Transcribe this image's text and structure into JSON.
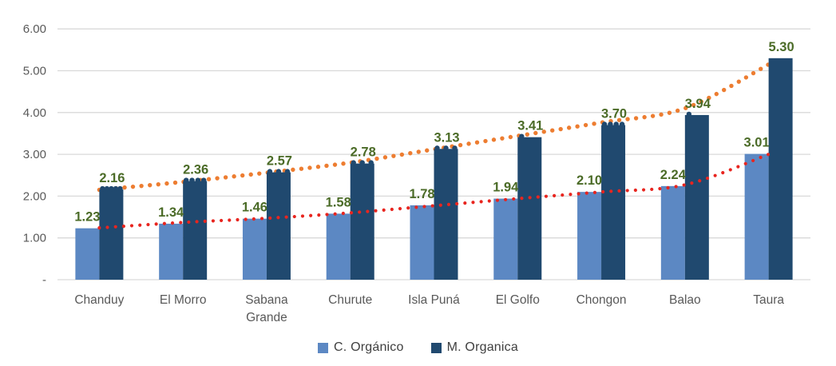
{
  "chart_data": {
    "type": "bar",
    "title": "",
    "xlabel": "",
    "ylabel": "",
    "categories": [
      "Chanduy",
      "El Morro",
      "Sabana Grande",
      "Churute",
      "Isla Puná",
      "El Golfo",
      "Chongon",
      "Balao",
      "Taura"
    ],
    "series": [
      {
        "name": "C. Orgánico",
        "color": "#5c88c3",
        "values": [
          1.23,
          1.34,
          1.46,
          1.58,
          1.78,
          1.94,
          2.1,
          2.24,
          3.01
        ]
      },
      {
        "name": "M. Organica",
        "color": "#20496f",
        "values": [
          2.16,
          2.36,
          2.57,
          2.78,
          3.13,
          3.41,
          3.7,
          3.94,
          5.3
        ]
      }
    ],
    "data_label_values": [
      [
        "1.23",
        "1.34",
        "1.46",
        "1.58",
        "1.78",
        "1.94",
        "2.10",
        "2.24",
        "3.01"
      ],
      [
        "2.16",
        "2.36",
        "2.57",
        "2.78",
        "3.13",
        "3.41",
        "3.70",
        "3.94",
        "5.30"
      ]
    ],
    "trendlines": [
      {
        "series": "M. Organica",
        "style": "dotted",
        "color": "#ed7d31",
        "behind_bars": true,
        "dot_size": 5.4,
        "dot_gap": 10.6,
        "points": [
          2.15,
          2.34,
          2.56,
          2.8,
          3.12,
          3.44,
          3.76,
          4.1,
          5.15
        ]
      },
      {
        "series": "C. Orgánico",
        "style": "dotted",
        "color": "#e8251f",
        "behind_bars": false,
        "dot_size": 4.2,
        "dot_gap": 10.2,
        "points": [
          1.24,
          1.37,
          1.47,
          1.6,
          1.77,
          1.94,
          2.1,
          2.27,
          3.0
        ]
      }
    ],
    "bar_top_dot_counts": [
      5,
      4,
      3,
      3,
      3,
      1,
      4,
      1,
      0
    ],
    "y_axis": {
      "ticks": [
        "6.00",
        "5.00",
        "4.00",
        "3.00",
        "2.00",
        "1.00",
        "-"
      ],
      "tick_values": [
        6,
        5,
        4,
        3,
        2,
        1,
        0
      ],
      "min": 0,
      "max": 6,
      "grid": true
    },
    "legend": {
      "position": "bottom",
      "items": [
        "C. Orgánico",
        "M. Organica"
      ]
    },
    "colors": {
      "value_label": "#4b6b27",
      "axis_text": "#595959",
      "gridline": "#d9d9d9",
      "legend_text": "#3f3f3f",
      "background": "#ffffff"
    }
  }
}
